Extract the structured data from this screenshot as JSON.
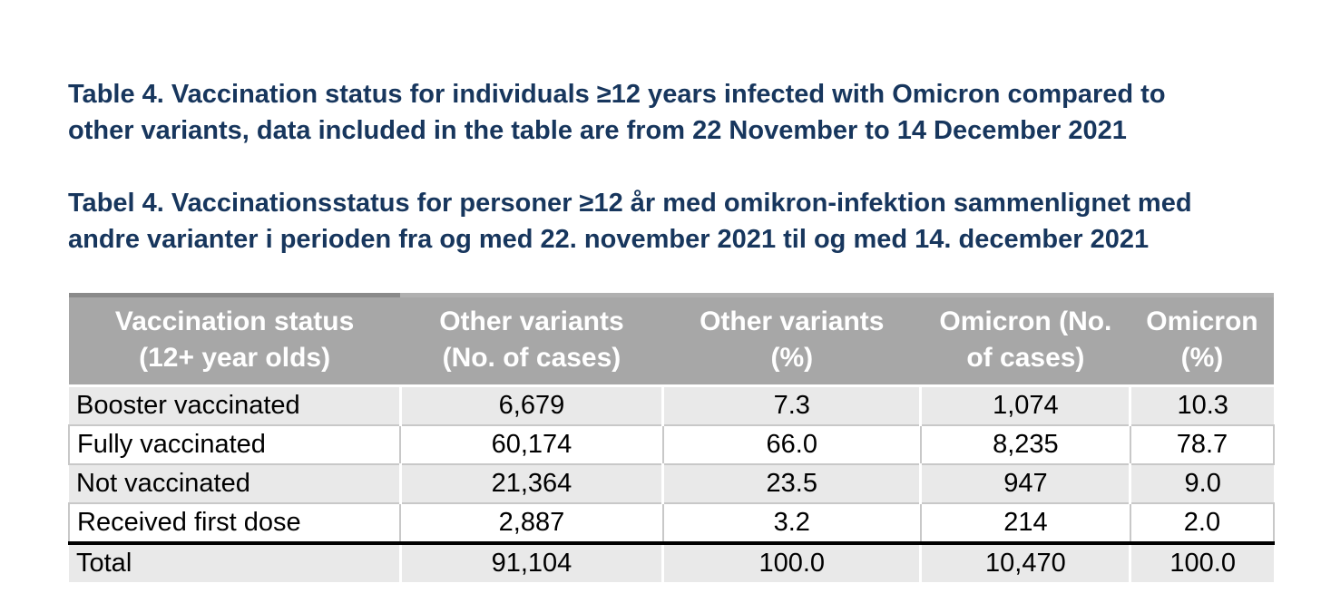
{
  "colors": {
    "title_text": "#17365d",
    "header_background": "#a7a7a7",
    "header_text": "#ffffff",
    "header_accent_top": "#8a8a8a",
    "row_alt_background": "#e9e9e9",
    "white_row_border": "#c8c8c8",
    "total_rule": "#000000"
  },
  "titles": {
    "english": "Table 4. Vaccination status for individuals ≥12 years infected with Omicron compared to\nother variants, data included in the table are from 22 November to 14 December 2021",
    "danish": "Tabel 4. Vaccinationsstatus for personer ≥12 år med omikron-infektion sammenlignet med\nandre varianter i perioden fra og med 22. november 2021 til og med 14. december 2021"
  },
  "table": {
    "headers": [
      "Vaccination status\n(12+ year olds)",
      "Other variants\n(No. of cases)",
      "Other variants\n(%)",
      "Omicron (No.\nof cases)",
      "Omicron\n(%)"
    ],
    "rows": [
      [
        "Booster vaccinated",
        "6,679",
        "7.3",
        "1,074",
        "10.3"
      ],
      [
        "Fully vaccinated",
        "60,174",
        "66.0",
        "8,235",
        "78.7"
      ],
      [
        "Not vaccinated",
        "21,364",
        "23.5",
        "947",
        "9.0"
      ],
      [
        "Received first dose",
        "2,887",
        "3.2",
        "214",
        "2.0"
      ]
    ],
    "total_row": [
      "Total",
      "91,104",
      "100.0",
      "10,470",
      "100.0"
    ]
  }
}
